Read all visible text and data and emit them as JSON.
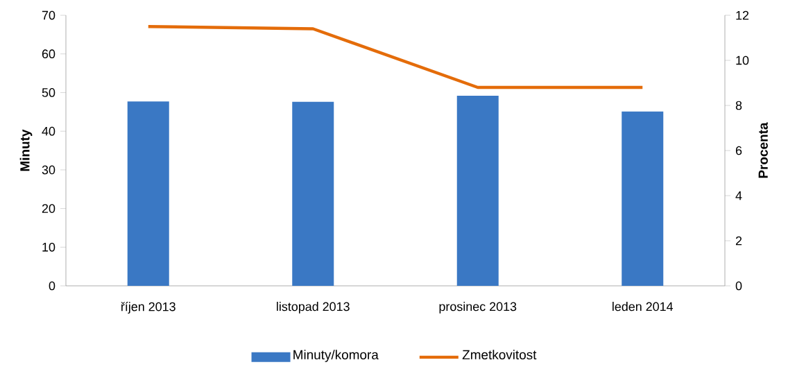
{
  "chart_data": {
    "type": "bar",
    "categories": [
      "říjen 2013",
      "listopad 2013",
      "prosinec 2013",
      "leden 2014"
    ],
    "series": [
      {
        "name": "Minuty/komora",
        "color": "#3a78c4",
        "values": [
          47.7,
          47.6,
          49.2,
          45.1
        ]
      },
      {
        "name": "Zmetkovitost",
        "type": "line",
        "axis": "y2",
        "color": "#e46c0a",
        "values": [
          11.5,
          11.4,
          8.8,
          8.8
        ]
      }
    ],
    "ylim": [
      0,
      70
    ],
    "yticks": [
      0,
      10,
      20,
      30,
      40,
      50,
      60,
      70
    ],
    "y2lim": [
      0,
      12
    ],
    "y2ticks": [
      0,
      2,
      4,
      6,
      8,
      10,
      12
    ],
    "ylabel": "Minuty",
    "y2label": "Procenta",
    "legend": "bottom"
  }
}
